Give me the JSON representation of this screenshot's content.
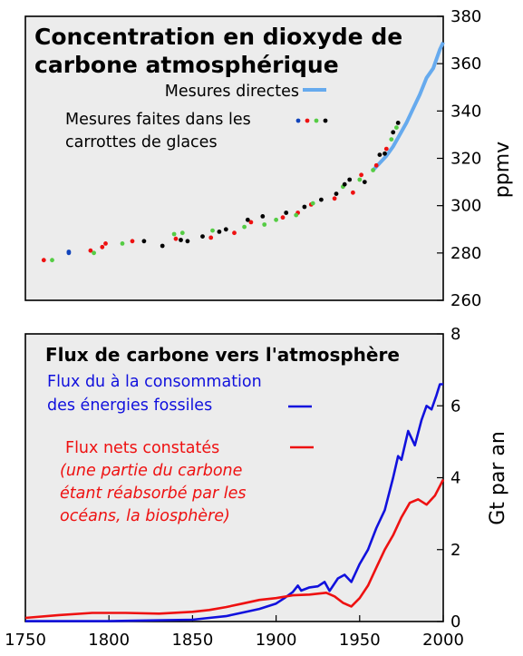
{
  "chart_data": [
    {
      "type": "scatter",
      "title_lines": [
        "Concentration en dioxyde de",
        "carbone atmosphérique"
      ],
      "ylabel": "ppmv",
      "xlim": [
        1750,
        2000
      ],
      "ylim": [
        260,
        380
      ],
      "y_ticks": [
        260,
        280,
        300,
        320,
        340,
        360,
        380
      ],
      "grid": false,
      "legend": [
        {
          "label": "Mesures directes",
          "color": "#66aaee"
        },
        {
          "label_lines": [
            "Mesures faites dans les",
            "carrottes de glaces"
          ],
          "colors": [
            "#1144bb",
            "#ee1111",
            "#55cc44",
            "#000000"
          ]
        }
      ],
      "series": [
        {
          "kind": "line",
          "color": "#66aaee",
          "x": [
            1958,
            1962,
            1966,
            1970,
            1974,
            1978,
            1982,
            1986,
            1990,
            1994,
            1998,
            2000
          ],
          "y": [
            315,
            318,
            321,
            325,
            330,
            335,
            341,
            347,
            354,
            358,
            366,
            369
          ]
        },
        {
          "kind": "points",
          "color": "#1144bb",
          "x": [
            1776,
            1776
          ],
          "y": [
            280,
            280.5
          ]
        },
        {
          "kind": "points",
          "color": "#ee1111",
          "x": [
            1761,
            1789,
            1796,
            1798,
            1814,
            1840,
            1861,
            1875,
            1885,
            1904,
            1913,
            1921,
            1935,
            1946,
            1951,
            1960,
            1966
          ],
          "y": [
            277,
            281,
            282.5,
            284,
            285,
            286,
            286.5,
            288.5,
            293,
            295,
            297,
            300.5,
            303,
            305.5,
            313,
            317,
            324
          ]
        },
        {
          "kind": "points",
          "color": "#55cc44",
          "x": [
            1766,
            1791,
            1808,
            1839,
            1844,
            1862,
            1881,
            1893,
            1900,
            1912,
            1922,
            1940,
            1950,
            1958,
            1969,
            1972
          ],
          "y": [
            277,
            280,
            284,
            288,
            288.5,
            289.5,
            291,
            292,
            294,
            296,
            301,
            308,
            311,
            315,
            328,
            333
          ]
        },
        {
          "kind": "points",
          "color": "#000000",
          "x": [
            1821,
            1832,
            1843,
            1847,
            1856,
            1866,
            1870,
            1883,
            1892,
            1906,
            1917,
            1927,
            1936,
            1941,
            1944,
            1953,
            1962,
            1965,
            1970,
            1973
          ],
          "y": [
            285,
            283,
            285.5,
            285,
            287,
            289,
            290,
            294,
            295.5,
            297,
            299.5,
            302.5,
            305,
            309,
            311,
            310,
            321.5,
            322,
            331,
            335
          ]
        }
      ]
    },
    {
      "type": "line",
      "title": "Flux de carbone vers l'atmosphère",
      "ylabel": "Gt par an",
      "xlim": [
        1750,
        2000
      ],
      "ylim": [
        0,
        8
      ],
      "y_ticks": [
        0,
        2,
        4,
        6,
        8
      ],
      "x_ticks": [
        1750,
        1800,
        1850,
        1900,
        1950,
        2000
      ],
      "grid": false,
      "series": [
        {
          "label_lines": [
            "Flux du à la consommation",
            "des énergies fossiles"
          ],
          "color": "#1111dd",
          "x": [
            1750,
            1800,
            1850,
            1860,
            1870,
            1880,
            1890,
            1900,
            1905,
            1910,
            1913,
            1915,
            1920,
            1925,
            1929,
            1932,
            1937,
            1941,
            1945,
            1947,
            1950,
            1955,
            1960,
            1965,
            1970,
            1973,
            1975,
            1979,
            1981,
            1983,
            1987,
            1990,
            1993,
            1996,
            1998,
            2000
          ],
          "y": [
            0.01,
            0.01,
            0.05,
            0.1,
            0.15,
            0.25,
            0.35,
            0.5,
            0.65,
            0.82,
            1.0,
            0.86,
            0.95,
            0.98,
            1.1,
            0.85,
            1.2,
            1.3,
            1.1,
            1.3,
            1.6,
            2.0,
            2.6,
            3.1,
            4.0,
            4.6,
            4.5,
            5.3,
            5.1,
            4.9,
            5.6,
            6.0,
            5.9,
            6.3,
            6.6,
            6.6
          ]
        },
        {
          "label_lines": [
            "Flux nets constatés"
          ],
          "note_lines": [
            "(une partie du carbone",
            "étant réabsorbé par les",
            "océans, la biosphère)"
          ],
          "color": "#ee1111",
          "x": [
            1750,
            1770,
            1790,
            1810,
            1830,
            1850,
            1860,
            1870,
            1880,
            1890,
            1900,
            1910,
            1920,
            1930,
            1935,
            1940,
            1945,
            1950,
            1955,
            1960,
            1965,
            1970,
            1975,
            1980,
            1985,
            1990,
            1995,
            2000
          ],
          "y": [
            0.1,
            0.18,
            0.24,
            0.24,
            0.22,
            0.27,
            0.32,
            0.4,
            0.5,
            0.6,
            0.65,
            0.73,
            0.75,
            0.8,
            0.7,
            0.52,
            0.42,
            0.65,
            1.0,
            1.5,
            2.0,
            2.4,
            2.9,
            3.3,
            3.4,
            3.25,
            3.5,
            3.95
          ]
        }
      ]
    }
  ]
}
